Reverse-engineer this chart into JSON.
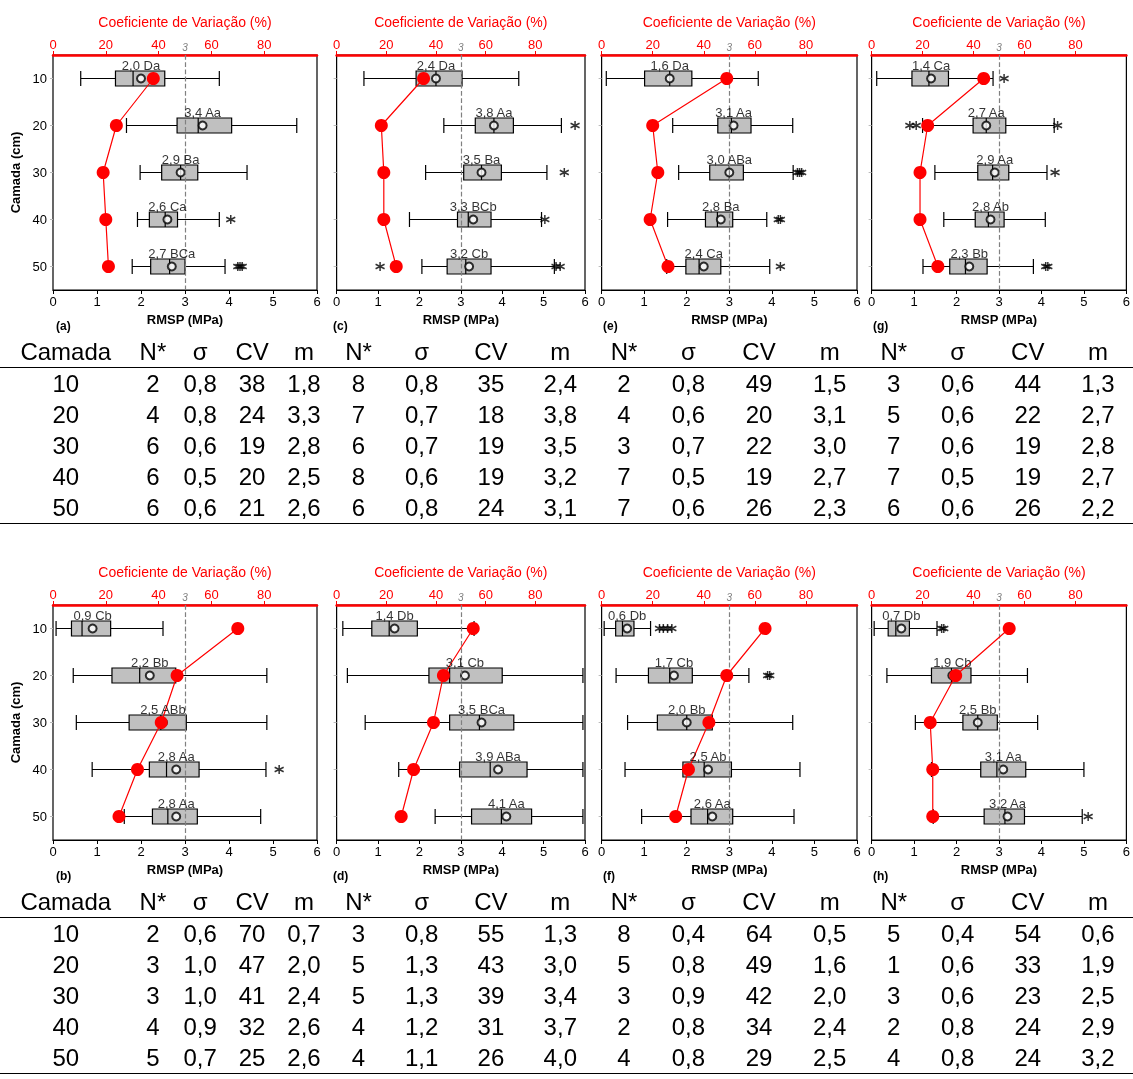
{
  "chart_data": [
    {
      "type": "box",
      "title": "(a)",
      "orientation": "horizontal",
      "xlabel": "RMSP (MPa)",
      "x2label": "Coeficiente de Variação (%)",
      "ylabel": "Camada (cm)",
      "categories": [
        "10",
        "20",
        "30",
        "40",
        "50"
      ],
      "xlim": [
        0,
        6
      ],
      "xticks": [
        0,
        1,
        2,
        3,
        4,
        5,
        6
      ],
      "x2lim": [
        0,
        100
      ],
      "x2ticks": [
        0,
        20,
        40,
        60,
        80
      ],
      "marker": "circle",
      "line_style": "solid",
      "ref_lines": [
        {
          "axis": "x",
          "value": 3,
          "label": "3",
          "color": "#808080",
          "line_style": "dashed"
        }
      ],
      "series": [
        {
          "color": "#c0c0c0",
          "value_labels": [
            "2,0 Da",
            "3,4 Aa",
            "2,9 Ba",
            "2,6 Ca",
            "2,7 BCa"
          ],
          "boxes": [
            {
              "low": 0.63,
              "q1": 1.42,
              "median": 1.82,
              "q3": 2.54,
              "high": 3.78,
              "mean": 2.0
            },
            {
              "low": 1.67,
              "q1": 2.82,
              "median": 3.3,
              "q3": 4.06,
              "high": 5.54,
              "mean": 3.4
            },
            {
              "low": 1.98,
              "q1": 2.47,
              "median": 2.9,
              "q3": 3.29,
              "high": 4.41,
              "mean": 2.9
            },
            {
              "low": 1.92,
              "q1": 2.19,
              "median": 2.55,
              "q3": 2.83,
              "high": 3.78,
              "mean": 2.6,
              "outliers": [
                4.04
              ]
            },
            {
              "low": 1.8,
              "q1": 2.22,
              "median": 2.65,
              "q3": 3.0,
              "high": 3.91,
              "mean": 2.7,
              "outliers": [
                4.2,
                4.25,
                4.3
              ]
            }
          ]
        },
        {
          "type": "line",
          "axis": "x2",
          "color": "#ff0000",
          "values": [
            38,
            24,
            19,
            20,
            21
          ]
        }
      ],
      "annotations": [
        "Camada N* σ CV m",
        "10 2 0,8 38 1,8",
        "20 4 0,8 24 3,3",
        "30 6 0,6 19 2,8",
        "40 6 0,5 20 2,5",
        "50 6 0,6 21 2,6"
      ]
    },
    {
      "type": "box",
      "title": "(c)",
      "orientation": "horizontal",
      "xlabel": "RMSP (MPa)",
      "x2label": "Coeficiente de Variação (%)",
      "categories": [
        "10",
        "20",
        "30",
        "40",
        "50"
      ],
      "xlim": [
        0,
        6
      ],
      "xticks": [
        0,
        1,
        2,
        3,
        4,
        5,
        6
      ],
      "x2lim": [
        0,
        100
      ],
      "x2ticks": [
        0,
        20,
        40,
        60,
        80
      ],
      "marker": "circle",
      "line_style": "solid",
      "tick_labels": "x",
      "ref_lines": [
        {
          "axis": "x",
          "value": 3,
          "label": "3",
          "color": "#808080",
          "line_style": "dashed"
        }
      ],
      "series": [
        {
          "color": "#c0c0c0",
          "value_labels": [
            "2,4 Da",
            "3,8 Aa",
            "3,5 Ba",
            "3,3 BCb",
            "3,2 Cb"
          ],
          "boxes": [
            {
              "low": 0.66,
              "q1": 1.92,
              "median": 2.4,
              "q3": 3.03,
              "high": 4.4,
              "mean": 2.4
            },
            {
              "low": 2.59,
              "q1": 3.35,
              "median": 3.8,
              "q3": 4.27,
              "high": 5.43,
              "mean": 3.8,
              "outliers": [
                5.76
              ]
            },
            {
              "low": 2.15,
              "q1": 3.07,
              "median": 3.5,
              "q3": 3.98,
              "high": 5.08,
              "mean": 3.5,
              "outliers": [
                5.5
              ]
            },
            {
              "low": 1.76,
              "q1": 2.92,
              "median": 3.18,
              "q3": 3.73,
              "high": 4.95,
              "mean": 3.3,
              "outliers": [
                5.03
              ]
            },
            {
              "low": 2.06,
              "q1": 2.67,
              "median": 3.12,
              "q3": 3.73,
              "high": 5.26,
              "mean": 3.2,
              "outliers": [
                1.05,
                5.3,
                5.4
              ]
            }
          ]
        },
        {
          "type": "line",
          "axis": "x2",
          "color": "#ff0000",
          "values": [
            35,
            18,
            19,
            19,
            24
          ]
        }
      ],
      "annotations": [
        "N* σ CV m",
        "8 0,8 35 2,4",
        "7 0,7 18 3,8",
        "6 0,7 19 3,5",
        "8 0,6 19 3,2",
        "6 0,8 24 3,1"
      ]
    },
    {
      "type": "box",
      "title": "(e)",
      "orientation": "horizontal",
      "xlabel": "RMSP (MPa)",
      "x2label": "Coeficiente de Variação (%)",
      "categories": [
        "10",
        "20",
        "30",
        "40",
        "50"
      ],
      "xlim": [
        0,
        6
      ],
      "xticks": [
        0,
        1,
        2,
        3,
        4,
        5,
        6
      ],
      "x2lim": [
        0,
        100
      ],
      "x2ticks": [
        0,
        20,
        40,
        60,
        80
      ],
      "marker": "circle",
      "line_style": "solid",
      "tick_labels": "x",
      "ref_lines": [
        {
          "axis": "x",
          "value": 3,
          "label": "3",
          "color": "#808080",
          "line_style": "dashed"
        }
      ],
      "series": [
        {
          "color": "#c0c0c0",
          "value_labels": [
            "1,6 Da",
            "3,1 Aa",
            "3,0 ABa",
            "2,8 Ba",
            "2,4 Ca"
          ],
          "boxes": [
            {
              "low": 0.11,
              "q1": 1.01,
              "median": 1.6,
              "q3": 2.12,
              "high": 3.68,
              "mean": 1.6
            },
            {
              "low": 1.67,
              "q1": 2.73,
              "median": 3.05,
              "q3": 3.51,
              "high": 4.49,
              "mean": 3.1
            },
            {
              "low": 1.81,
              "q1": 2.54,
              "median": 3.0,
              "q3": 3.33,
              "high": 4.5,
              "mean": 3.0,
              "outliers": [
                4.6,
                4.65,
                4.7
              ]
            },
            {
              "low": 1.55,
              "q1": 2.44,
              "median": 2.72,
              "q3": 3.08,
              "high": 3.88,
              "mean": 2.8,
              "outliers": [
                4.15,
                4.2
              ]
            },
            {
              "low": 1.53,
              "q1": 1.98,
              "median": 2.29,
              "q3": 2.8,
              "high": 3.95,
              "mean": 2.4,
              "outliers": [
                4.2
              ]
            }
          ]
        },
        {
          "type": "line",
          "axis": "x2",
          "color": "#ff0000",
          "values": [
            49,
            20,
            22,
            19,
            26
          ]
        }
      ],
      "annotations": [
        "N* σ CV m",
        "2 0,8 49 1,5",
        "4 0,6 20 3,1",
        "3 0,7 22 3,0",
        "7 0,5 19 2,7",
        "7 0,6 26 2,3"
      ]
    },
    {
      "type": "box",
      "title": "(g)",
      "orientation": "horizontal",
      "xlabel": "RMSP (MPa)",
      "x2label": "Coeficiente de Variação (%)",
      "categories": [
        "10",
        "20",
        "30",
        "40",
        "50"
      ],
      "xlim": [
        0,
        6
      ],
      "xticks": [
        0,
        1,
        2,
        3,
        4,
        5,
        6
      ],
      "x2lim": [
        0,
        100
      ],
      "x2ticks": [
        0,
        20,
        40,
        60,
        80
      ],
      "marker": "circle",
      "line_style": "solid",
      "tick_labels": "x",
      "ref_lines": [
        {
          "axis": "x",
          "value": 3,
          "label": "3",
          "color": "#808080",
          "line_style": "dashed"
        }
      ],
      "series": [
        {
          "color": "#c0c0c0",
          "value_labels": [
            "1,4 Ca",
            "2,7 Aa",
            "2,9 Aa",
            "2,8 Ab",
            "2,3 Bb"
          ],
          "boxes": [
            {
              "low": 0.12,
              "q1": 0.95,
              "median": 1.35,
              "q3": 1.81,
              "high": 2.86,
              "mean": 1.4,
              "outliers": [
                3.12
              ]
            },
            {
              "low": 1.2,
              "q1": 2.39,
              "median": 2.7,
              "q3": 3.16,
              "high": 4.3,
              "mean": 2.7,
              "outliers": [
                0.9,
                1.05,
                4.38
              ]
            },
            {
              "low": 1.49,
              "q1": 2.5,
              "median": 2.85,
              "q3": 3.23,
              "high": 4.13,
              "mean": 2.9,
              "outliers": [
                4.32
              ]
            },
            {
              "low": 1.7,
              "q1": 2.44,
              "median": 2.75,
              "q3": 3.12,
              "high": 4.09,
              "mean": 2.8
            },
            {
              "low": 1.21,
              "q1": 1.84,
              "median": 2.21,
              "q3": 2.72,
              "high": 3.81,
              "mean": 2.3,
              "outliers": [
                4.1,
                4.15
              ]
            }
          ]
        },
        {
          "type": "line",
          "axis": "x2",
          "color": "#ff0000",
          "values": [
            44,
            22,
            19,
            19,
            26
          ]
        }
      ],
      "annotations": [
        "N* σ CV m",
        "3 0,6 44 1,3",
        "5 0,6 22 2,7",
        "7 0,6 19 2,8",
        "7 0,5 19 2,7",
        "6 0,6 26 2,2"
      ]
    },
    {
      "type": "box",
      "title": "(b)",
      "orientation": "horizontal",
      "xlabel": "RMSP (MPa)",
      "x2label": "Coeficiente de Variação (%)",
      "ylabel": "Camada (cm)",
      "categories": [
        "10",
        "20",
        "30",
        "40",
        "50"
      ],
      "xlim": [
        0,
        6
      ],
      "xticks": [
        0,
        1,
        2,
        3,
        4,
        5,
        6
      ],
      "x2lim": [
        0,
        100
      ],
      "x2ticks": [
        0,
        20,
        40,
        60,
        80
      ],
      "marker": "circle",
      "line_style": "solid",
      "ref_lines": [
        {
          "axis": "x",
          "value": 3,
          "label": "3",
          "color": "#808080",
          "line_style": "dashed"
        }
      ],
      "series": [
        {
          "color": "#c0c0c0",
          "value_labels": [
            "0,9 Cb",
            "2,2 Bb",
            "2,5 ABb",
            "2,8 Aa",
            "2,8 Aa"
          ],
          "boxes": [
            {
              "low": 0.07,
              "q1": 0.42,
              "median": 0.66,
              "q3": 1.31,
              "high": 2.5,
              "mean": 0.9
            },
            {
              "low": 0.46,
              "q1": 1.34,
              "median": 1.97,
              "q3": 2.79,
              "high": 4.86,
              "mean": 2.2
            },
            {
              "low": 0.53,
              "q1": 1.73,
              "median": 2.45,
              "q3": 3.03,
              "high": 4.86,
              "mean": 2.5
            },
            {
              "low": 0.89,
              "q1": 2.19,
              "median": 2.58,
              "q3": 3.32,
              "high": 4.84,
              "mean": 2.8,
              "outliers": [
                5.14
              ]
            },
            {
              "low": 1.62,
              "q1": 2.26,
              "median": 2.61,
              "q3": 3.28,
              "high": 4.72,
              "mean": 2.8
            }
          ]
        },
        {
          "type": "line",
          "axis": "x2",
          "color": "#ff0000",
          "values": [
            70,
            47,
            41,
            32,
            25
          ]
        }
      ],
      "annotations": [
        "Camada N* σ CV m",
        "10 2 0,6 70 0,7",
        "20 3 1,0 47 2,0",
        "30 3 1,0 41 2,4",
        "40 4 0,9 32 2,6",
        "50 5 0,7 25 2,6"
      ]
    },
    {
      "type": "box",
      "title": "(d)",
      "orientation": "horizontal",
      "xlabel": "RMSP (MPa)",
      "x2label": "Coeficiente de Variação (%)",
      "categories": [
        "10",
        "20",
        "30",
        "40",
        "50"
      ],
      "xlim": [
        0,
        6
      ],
      "xticks": [
        0,
        1,
        2,
        3,
        4,
        5,
        6
      ],
      "x2lim": [
        0,
        100
      ],
      "x2ticks": [
        0,
        20,
        40,
        60,
        80
      ],
      "marker": "circle",
      "line_style": "solid",
      "tick_labels": "x",
      "ref_lines": [
        {
          "axis": "x",
          "value": 3,
          "label": "3",
          "color": "#808080",
          "line_style": "dashed"
        }
      ],
      "series": [
        {
          "color": "#c0c0c0",
          "value_labels": [
            "1,4 Db",
            "3,1 Cb",
            "3,5 BCa",
            "3,9 ABa",
            "4,1 Aa"
          ],
          "boxes": [
            {
              "low": 0.15,
              "q1": 0.85,
              "median": 1.27,
              "q3": 1.95,
              "high": 3.32,
              "mean": 1.4
            },
            {
              "low": 0.26,
              "q1": 2.23,
              "median": 2.73,
              "q3": 4.0,
              "high": 5.95,
              "mean": 3.1
            },
            {
              "low": 0.69,
              "q1": 2.73,
              "median": 3.45,
              "q3": 4.28,
              "high": 5.95,
              "mean": 3.5
            },
            {
              "low": 1.5,
              "q1": 2.97,
              "median": 3.71,
              "q3": 4.6,
              "high": 5.95,
              "mean": 3.9
            },
            {
              "low": 2.38,
              "q1": 3.26,
              "median": 3.98,
              "q3": 4.71,
              "high": 5.95,
              "mean": 4.1
            }
          ]
        },
        {
          "type": "line",
          "axis": "x2",
          "color": "#ff0000",
          "values": [
            55,
            43,
            39,
            31,
            26
          ]
        }
      ],
      "annotations": [
        "N* σ CV m",
        "3 0,8 55 1,3",
        "5 1,3 43 3,0",
        "5 1,3 39 3,4",
        "4 1,2 31 3,7",
        "4 1,1 26 4,0"
      ]
    },
    {
      "type": "box",
      "title": "(f)",
      "orientation": "horizontal",
      "xlabel": "RMSP (MPa)",
      "x2label": "Coeficiente de Variação (%)",
      "categories": [
        "10",
        "20",
        "30",
        "40",
        "50"
      ],
      "xlim": [
        0,
        6
      ],
      "xticks": [
        0,
        1,
        2,
        3,
        4,
        5,
        6
      ],
      "x2lim": [
        0,
        100
      ],
      "x2ticks": [
        0,
        20,
        40,
        60,
        80
      ],
      "marker": "circle",
      "line_style": "solid",
      "tick_labels": "x",
      "ref_lines": [
        {
          "axis": "x",
          "value": 3,
          "label": "3",
          "color": "#808080",
          "line_style": "dashed"
        }
      ],
      "series": [
        {
          "color": "#c0c0c0",
          "value_labels": [
            "0,6 Db",
            "1,7 Cb",
            "2,0 Bb",
            "2,5 Ab",
            "2,6 Aa"
          ],
          "boxes": [
            {
              "low": 0.06,
              "q1": 0.33,
              "median": 0.49,
              "q3": 0.76,
              "high": 1.15,
              "mean": 0.6,
              "outliers": [
                1.36,
                1.45,
                1.55,
                1.65
              ]
            },
            {
              "low": 0.34,
              "q1": 1.1,
              "median": 1.6,
              "q3": 2.13,
              "high": 3.46,
              "mean": 1.7,
              "outliers": [
                3.9,
                3.95
              ]
            },
            {
              "low": 0.61,
              "q1": 1.31,
              "median": 2.0,
              "q3": 2.6,
              "high": 4.49,
              "mean": 2.0
            },
            {
              "low": 0.55,
              "q1": 1.91,
              "median": 2.41,
              "q3": 3.05,
              "high": 4.66,
              "mean": 2.5
            },
            {
              "low": 0.94,
              "q1": 2.1,
              "median": 2.49,
              "q3": 3.08,
              "high": 4.52,
              "mean": 2.6
            }
          ]
        },
        {
          "type": "line",
          "axis": "x2",
          "color": "#ff0000",
          "values": [
            64,
            49,
            42,
            34,
            29
          ]
        }
      ],
      "annotations": [
        "N* σ CV m",
        "8 0,4 64 0,5",
        "5 0,8 49 1,6",
        "3 0,9 42 2,0",
        "2 0,8 34 2,4",
        "4 0,8 29 2,5"
      ]
    },
    {
      "type": "box",
      "title": "(h)",
      "orientation": "horizontal",
      "xlabel": "RMSP (MPa)",
      "x2label": "Coeficiente de Variação (%)",
      "categories": [
        "10",
        "20",
        "30",
        "40",
        "50"
      ],
      "xlim": [
        0,
        6
      ],
      "xticks": [
        0,
        1,
        2,
        3,
        4,
        5,
        6
      ],
      "x2lim": [
        0,
        100
      ],
      "x2ticks": [
        0,
        20,
        40,
        60,
        80
      ],
      "marker": "circle",
      "line_style": "solid",
      "tick_labels": "x",
      "ref_lines": [
        {
          "axis": "x",
          "value": 3,
          "label": "3",
          "color": "#808080",
          "line_style": "dashed"
        }
      ],
      "series": [
        {
          "color": "#c0c0c0",
          "value_labels": [
            "0,7 Db",
            "1,9 Cb",
            "2,5 Bb",
            "3,1 Aa",
            "3,2 Aa"
          ],
          "boxes": [
            {
              "low": 0.06,
              "q1": 0.39,
              "median": 0.57,
              "q3": 0.89,
              "high": 1.54,
              "mean": 0.7,
              "outliers": [
                1.65,
                1.7
              ]
            },
            {
              "low": 0.36,
              "q1": 1.41,
              "median": 1.88,
              "q3": 2.34,
              "high": 3.67,
              "mean": 1.9
            },
            {
              "low": 1.03,
              "q1": 2.15,
              "median": 2.5,
              "q3": 2.96,
              "high": 3.91,
              "mean": 2.5
            },
            {
              "low": 1.41,
              "q1": 2.57,
              "median": 2.95,
              "q3": 3.63,
              "high": 5.0,
              "mean": 3.1
            },
            {
              "low": 1.45,
              "q1": 2.65,
              "median": 3.14,
              "q3": 3.6,
              "high": 4.96,
              "mean": 3.2,
              "outliers": [
                5.1
              ]
            }
          ]
        },
        {
          "type": "line",
          "axis": "x2",
          "color": "#ff0000",
          "values": [
            54,
            33,
            23,
            24,
            24
          ]
        }
      ],
      "annotations": [
        "N* σ CV m",
        "5 0,4 54 0,6",
        "1 0,6 33 1,9",
        "3 0,6 23 2,5",
        "2 0,8 24 2,9",
        "4 0,8 24 3,2"
      ]
    }
  ]
}
